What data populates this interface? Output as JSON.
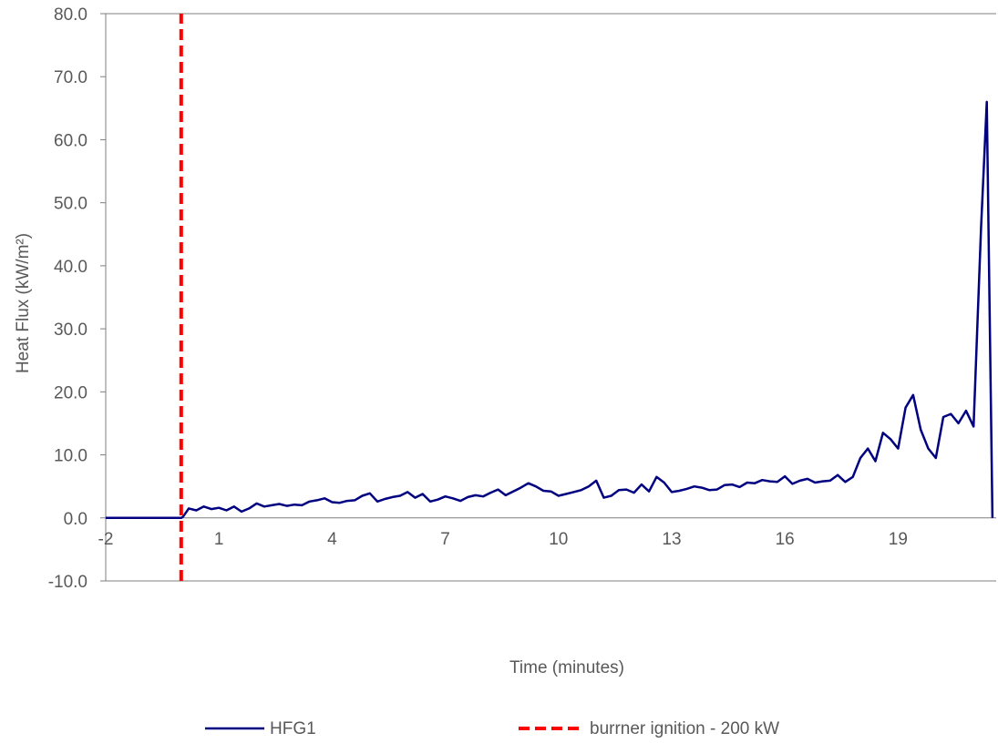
{
  "chart_data": {
    "type": "line",
    "title": "",
    "xlabel": "Time (minutes)",
    "ylabel": "Heat Flux (kW/m²)",
    "xlim": [
      -2,
      21.6
    ],
    "ylim": [
      -10,
      80
    ],
    "x_ticks": [
      -2,
      1,
      4,
      7,
      10,
      13,
      16,
      19
    ],
    "x_tick_labels": [
      "-2",
      "1",
      "4",
      "7",
      "10",
      "13",
      "16",
      "19"
    ],
    "y_ticks": [
      -10,
      0,
      10,
      20,
      30,
      40,
      50,
      60,
      70,
      80
    ],
    "y_tick_labels": [
      "-10.0",
      "0.0",
      "10.0",
      "20.0",
      "30.0",
      "40.0",
      "50.0",
      "60.0",
      "70.0",
      "80.0"
    ],
    "grid": false,
    "legend_position": "bottom",
    "series": [
      {
        "name": "HFG1",
        "color": "#000080",
        "style": "solid",
        "x": [
          -2,
          -1,
          0,
          0.05,
          0.2,
          0.4,
          0.6,
          0.8,
          1.0,
          1.2,
          1.4,
          1.6,
          1.8,
          2.0,
          2.2,
          2.4,
          2.6,
          2.8,
          3.0,
          3.2,
          3.4,
          3.6,
          3.8,
          4.0,
          4.2,
          4.4,
          4.6,
          4.8,
          5.0,
          5.2,
          5.4,
          5.6,
          5.8,
          6.0,
          6.2,
          6.4,
          6.6,
          6.8,
          7.0,
          7.2,
          7.4,
          7.6,
          7.8,
          8.0,
          8.2,
          8.4,
          8.6,
          8.8,
          9.0,
          9.2,
          9.4,
          9.6,
          9.8,
          10.0,
          10.2,
          10.4,
          10.6,
          10.8,
          11.0,
          11.2,
          11.4,
          11.6,
          11.8,
          12.0,
          12.2,
          12.4,
          12.6,
          12.8,
          13.0,
          13.2,
          13.4,
          13.6,
          13.8,
          14.0,
          14.2,
          14.4,
          14.6,
          14.8,
          15.0,
          15.2,
          15.4,
          15.6,
          15.8,
          16.0,
          16.2,
          16.4,
          16.6,
          16.8,
          17.0,
          17.2,
          17.4,
          17.6,
          17.8,
          18.0,
          18.2,
          18.4,
          18.6,
          18.8,
          19.0,
          19.2,
          19.4,
          19.6,
          19.8,
          20.0,
          20.2,
          20.4,
          20.6,
          20.8,
          21.0,
          21.2,
          21.35,
          21.5
        ],
        "y": [
          0,
          0,
          0,
          0.2,
          1.5,
          1.2,
          1.8,
          1.4,
          1.6,
          1.2,
          1.8,
          1.0,
          1.5,
          2.3,
          1.8,
          2.0,
          2.2,
          1.9,
          2.1,
          2.0,
          2.6,
          2.8,
          3.1,
          2.5,
          2.4,
          2.7,
          2.8,
          3.5,
          3.9,
          2.6,
          3.0,
          3.3,
          3.5,
          4.1,
          3.2,
          3.8,
          2.6,
          2.9,
          3.4,
          3.1,
          2.7,
          3.3,
          3.6,
          3.4,
          4.0,
          4.5,
          3.6,
          4.2,
          4.8,
          5.5,
          5.0,
          4.3,
          4.2,
          3.5,
          3.8,
          4.1,
          4.4,
          5.0,
          5.9,
          3.2,
          3.5,
          4.4,
          4.5,
          4.0,
          5.3,
          4.2,
          6.5,
          5.6,
          4.1,
          4.3,
          4.6,
          5.0,
          4.8,
          4.4,
          4.5,
          5.2,
          5.3,
          4.9,
          5.6,
          5.5,
          6.0,
          5.8,
          5.7,
          6.6,
          5.4,
          5.9,
          6.2,
          5.6,
          5.8,
          5.9,
          6.8,
          5.7,
          6.5,
          9.5,
          11.0,
          9.0,
          13.5,
          12.5,
          11.0,
          17.5,
          19.5,
          14.0,
          11.0,
          9.5,
          16.0,
          16.5,
          15.0,
          17.0,
          14.5,
          46.0,
          66.0,
          0
        ]
      },
      {
        "name": "burrner ignition - 200 kW",
        "color": "#FF0000",
        "style": "dashed",
        "x": [
          0,
          0
        ],
        "y": [
          -10,
          80
        ]
      }
    ]
  }
}
